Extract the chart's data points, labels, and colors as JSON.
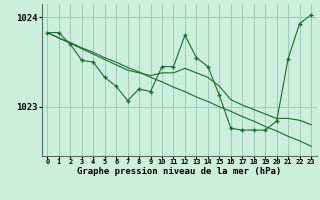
{
  "title": "Graphe pression niveau de la mer (hPa)",
  "bg_color": "#cceedd",
  "grid_color": "#99ccbb",
  "line_color": "#1a6b2a",
  "xlim": [
    -0.5,
    23.5
  ],
  "ylim": [
    1022.45,
    1024.15
  ],
  "yticks": [
    1023,
    1024
  ],
  "ytick_labels": [
    "1023",
    "1024"
  ],
  "xticks": [
    0,
    1,
    2,
    3,
    4,
    5,
    6,
    7,
    8,
    9,
    10,
    11,
    12,
    13,
    14,
    15,
    16,
    17,
    18,
    19,
    20,
    21,
    22,
    23
  ],
  "series_main": [
    1023.83,
    1023.83,
    1023.7,
    1023.52,
    1023.5,
    1023.33,
    1023.23,
    1023.07,
    1023.2,
    1023.17,
    1023.45,
    1023.45,
    1023.8,
    1023.55,
    1023.45,
    1023.13,
    1022.76,
    1022.74,
    1022.74,
    1022.74,
    1022.84,
    1023.54,
    1023.93,
    1024.03
  ],
  "series_trend1": [
    1023.83,
    1023.77,
    1023.72,
    1023.66,
    1023.61,
    1023.55,
    1023.5,
    1023.44,
    1023.39,
    1023.33,
    1023.28,
    1023.22,
    1023.17,
    1023.11,
    1023.06,
    1023.0,
    1022.95,
    1022.89,
    1022.84,
    1022.78,
    1022.73,
    1022.67,
    1022.62,
    1022.56
  ],
  "series_trend2": [
    1023.83,
    1023.77,
    1023.71,
    1023.65,
    1023.59,
    1023.53,
    1023.47,
    1023.41,
    1023.38,
    1023.35,
    1023.38,
    1023.38,
    1023.43,
    1023.38,
    1023.33,
    1023.23,
    1023.08,
    1023.02,
    1022.97,
    1022.92,
    1022.87,
    1022.87,
    1022.85,
    1022.8
  ]
}
